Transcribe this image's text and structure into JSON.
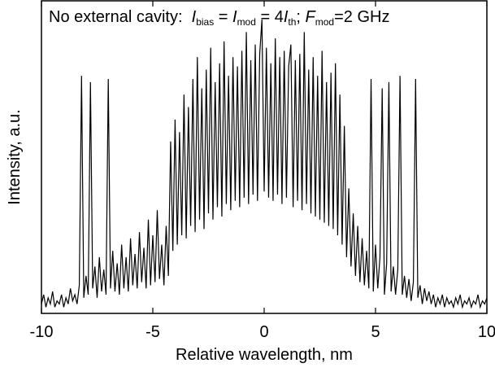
{
  "chart_data": {
    "type": "line",
    "annotation": [
      {
        "text": "No external cavity:  ",
        "style": "normal"
      },
      {
        "text": "I",
        "style": "italic"
      },
      {
        "text": "bias",
        "style": "sub"
      },
      {
        "text": " = ",
        "style": "normal"
      },
      {
        "text": "I",
        "style": "italic"
      },
      {
        "text": "mod",
        "style": "sub"
      },
      {
        "text": " = 4",
        "style": "normal"
      },
      {
        "text": "I",
        "style": "italic"
      },
      {
        "text": "th",
        "style": "sub"
      },
      {
        "text": "; ",
        "style": "normal"
      },
      {
        "text": "F",
        "style": "italic"
      },
      {
        "text": "mod",
        "style": "sub"
      },
      {
        "text": "=2 GHz",
        "style": "normal"
      }
    ],
    "x_label": "Relative wavelength, nm",
    "y_label": "Intensity, a.u.",
    "color": "#000000",
    "xlim": [
      -10,
      10
    ],
    "xticks": [
      -10,
      -5,
      0,
      5,
      10
    ],
    "ylim": [
      0,
      100
    ],
    "x": [
      -10,
      -9.9,
      -9.8,
      -9.7,
      -9.6,
      -9.5,
      -9.4,
      -9.3,
      -9.2,
      -9.1,
      -9,
      -8.9,
      -8.8,
      -8.7,
      -8.6,
      -8.5,
      -8.4,
      -8.3,
      -8.2,
      -8.1,
      -8,
      -7.9,
      -7.8,
      -7.7,
      -7.6,
      -7.5,
      -7.4,
      -7.3,
      -7.2,
      -7.1,
      -7,
      -6.9,
      -6.8,
      -6.7,
      -6.6,
      -6.5,
      -6.4,
      -6.3,
      -6.2,
      -6.1,
      -6,
      -5.9,
      -5.8,
      -5.7,
      -5.6,
      -5.5,
      -5.4,
      -5.3,
      -5.2,
      -5.1,
      -5,
      -4.9,
      -4.8,
      -4.7,
      -4.6,
      -4.5,
      -4.4,
      -4.3,
      -4.2,
      -4.1,
      -4,
      -3.9,
      -3.8,
      -3.7,
      -3.6,
      -3.5,
      -3.4,
      -3.3,
      -3.2,
      -3.1,
      -3,
      -2.9,
      -2.8,
      -2.7,
      -2.6,
      -2.5,
      -2.4,
      -2.3,
      -2.2,
      -2.1,
      -2,
      -1.9,
      -1.8,
      -1.7,
      -1.6,
      -1.5,
      -1.4,
      -1.3,
      -1.2,
      -1.1,
      -1,
      -0.9,
      -0.8,
      -0.7,
      -0.6,
      -0.5,
      -0.4,
      -0.3,
      -0.2,
      -0.1,
      0,
      0.1,
      0.2,
      0.3,
      0.4,
      0.5,
      0.6,
      0.7,
      0.8,
      0.9,
      1,
      1.1,
      1.2,
      1.3,
      1.4,
      1.5,
      1.6,
      1.7,
      1.8,
      1.9,
      2,
      2.1,
      2.2,
      2.3,
      2.4,
      2.5,
      2.6,
      2.7,
      2.8,
      2.9,
      3,
      3.1,
      3.2,
      3.3,
      3.4,
      3.5,
      3.6,
      3.7,
      3.8,
      3.9,
      4,
      4.1,
      4.2,
      4.3,
      4.4,
      4.5,
      4.6,
      4.7,
      4.8,
      4.9,
      5,
      5.1,
      5.2,
      5.3,
      5.4,
      5.5,
      5.6,
      5.7,
      5.8,
      5.9,
      6,
      6.1,
      6.2,
      6.3,
      6.4,
      6.5,
      6.6,
      6.7,
      6.8,
      6.9,
      7,
      7.1,
      7.2,
      7.3,
      7.4,
      7.5,
      7.6,
      7.7,
      7.8,
      7.9,
      8,
      8.1,
      8.2,
      8.3,
      8.4,
      8.5,
      8.6,
      8.7,
      8.8,
      8.9,
      9,
      9.1,
      9.2,
      9.3,
      9.4,
      9.5,
      9.6,
      9.7,
      9.8,
      9.9,
      10
    ],
    "values": [
      3,
      6,
      2,
      5,
      3,
      7,
      2,
      4,
      3,
      6,
      2,
      5,
      3,
      8,
      4,
      6,
      3,
      9,
      76,
      5,
      12,
      6,
      74,
      8,
      15,
      5,
      18,
      7,
      14,
      6,
      75,
      8,
      20,
      7,
      16,
      6,
      22,
      8,
      18,
      7,
      24,
      9,
      19,
      8,
      26,
      10,
      21,
      8,
      30,
      9,
      25,
      10,
      33,
      11,
      22,
      9,
      28,
      12,
      55,
      20,
      62,
      22,
      58,
      25,
      70,
      24,
      66,
      28,
      75,
      26,
      82,
      30,
      72,
      27,
      78,
      32,
      85,
      30,
      74,
      34,
      80,
      31,
      87,
      35,
      76,
      33,
      82,
      36,
      79,
      34,
      84,
      37,
      90,
      35,
      81,
      38,
      86,
      36,
      83,
      94,
      39,
      85,
      37,
      80,
      36,
      88,
      38,
      82,
      35,
      84,
      37,
      79,
      86,
      34,
      81,
      36,
      83,
      33,
      90,
      35,
      78,
      32,
      82,
      31,
      76,
      30,
      84,
      29,
      74,
      28,
      77,
      27,
      80,
      25,
      70,
      22,
      60,
      18,
      40,
      15,
      32,
      12,
      28,
      10,
      24,
      9,
      20,
      8,
      75,
      7,
      22,
      8,
      18,
      72,
      6,
      16,
      74,
      7,
      15,
      6,
      14,
      76,
      6,
      12,
      5,
      11,
      4,
      10,
      75,
      5,
      9,
      3,
      8,
      4,
      7,
      3,
      6,
      2,
      5,
      3,
      6,
      2,
      5,
      3,
      4,
      2,
      5,
      3,
      6,
      2,
      4,
      3,
      5,
      2,
      4,
      3,
      6,
      2,
      4,
      3,
      5
    ]
  }
}
